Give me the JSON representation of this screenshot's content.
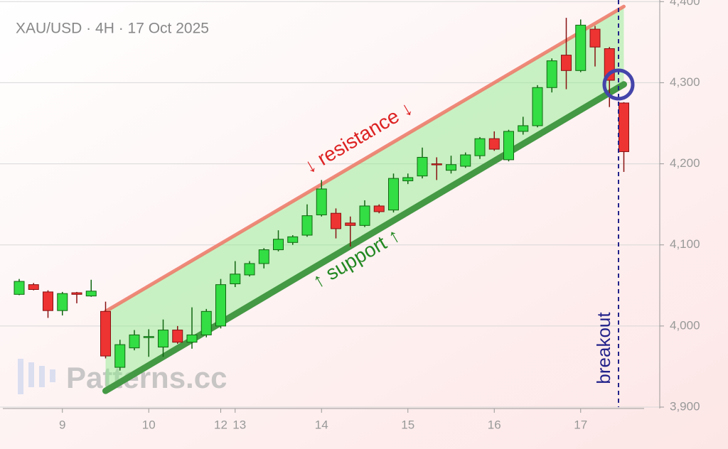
{
  "chart_data": {
    "type": "candlestick",
    "title": "XAU/USD · 4H · 17 Oct 2025",
    "watermark": "Patterns.cc",
    "categories": [
      null,
      null,
      null,
      "9",
      null,
      null,
      null,
      null,
      null,
      "10",
      null,
      null,
      null,
      null,
      "12",
      "13",
      null,
      null,
      null,
      null,
      null,
      "14",
      null,
      null,
      null,
      null,
      null,
      "15",
      null,
      null,
      null,
      null,
      null,
      "16",
      null,
      null,
      null,
      null,
      null,
      "17",
      null,
      null,
      null
    ],
    "open": [
      4039,
      4051,
      4042,
      4019,
      4041,
      4037,
      4018,
      3949,
      3973,
      3986,
      3974,
      3995,
      3980,
      3989,
      4000,
      4052,
      4063,
      4077,
      4094,
      4103,
      4112,
      4137,
      4139,
      4127,
      4124,
      4148,
      4143,
      4179,
      4185,
      4200,
      4192,
      4197,
      4210,
      4231,
      4205,
      4240,
      4247,
      4294,
      4334,
      4315,
      4366,
      4342,
      4275
    ],
    "high": [
      4058,
      4053,
      4044,
      4042,
      4042,
      4057,
      4030,
      3983,
      3995,
      3996,
      4008,
      4000,
      4023,
      4021,
      4058,
      4080,
      4080,
      4096,
      4118,
      4112,
      4150,
      4180,
      4145,
      4135,
      4155,
      4150,
      4188,
      4188,
      4220,
      4208,
      4210,
      4214,
      4233,
      4240,
      4242,
      4258,
      4297,
      4330,
      4380,
      4378,
      4370,
      4344,
      4276
    ],
    "low": [
      4038,
      4044,
      4010,
      4013,
      4028,
      4036,
      3960,
      3945,
      3970,
      3962,
      3962,
      3978,
      3972,
      3986,
      3997,
      4048,
      4061,
      4071,
      4092,
      4100,
      4110,
      4135,
      4108,
      4098,
      4122,
      4139,
      4140,
      4175,
      4182,
      4180,
      4188,
      4195,
      4206,
      4216,
      4203,
      4236,
      4245,
      4288,
      4292,
      4313,
      4320,
      4270,
      4190
    ],
    "close": [
      4055,
      4045,
      4019,
      4040,
      4039,
      4043,
      3963,
      3977,
      3989,
      3987,
      3995,
      3980,
      3989,
      4018,
      4051,
      4064,
      4077,
      4094,
      4107,
      4110,
      4136,
      4169,
      4120,
      4124,
      4148,
      4141,
      4182,
      4183,
      4208,
      4199,
      4199,
      4211,
      4231,
      4218,
      4240,
      4247,
      4294,
      4327,
      4315,
      4371,
      4344,
      4303,
      4215
    ],
    "up_color": "#33dd44",
    "down_color": "#ee3333",
    "resistance": {
      "label": "↓ resistance ↓",
      "values": [
        4018,
        4394
      ],
      "color": "#ee7766"
    },
    "support": {
      "label": "↑ support ↑",
      "values": [
        3920,
        4298
      ],
      "color": "#449944"
    },
    "breakout_label": "breakout",
    "ylim": [
      3900,
      4402
    ],
    "yticks": [
      {
        "value": 3900,
        "label": "3,900"
      },
      {
        "value": 4000,
        "label": "4,000"
      },
      {
        "value": 4100,
        "label": "4,100"
      },
      {
        "value": 4200,
        "label": "4,200"
      },
      {
        "value": 4300,
        "label": "4,300"
      },
      {
        "value": 4400,
        "label": "4,400"
      }
    ],
    "grid": true
  }
}
